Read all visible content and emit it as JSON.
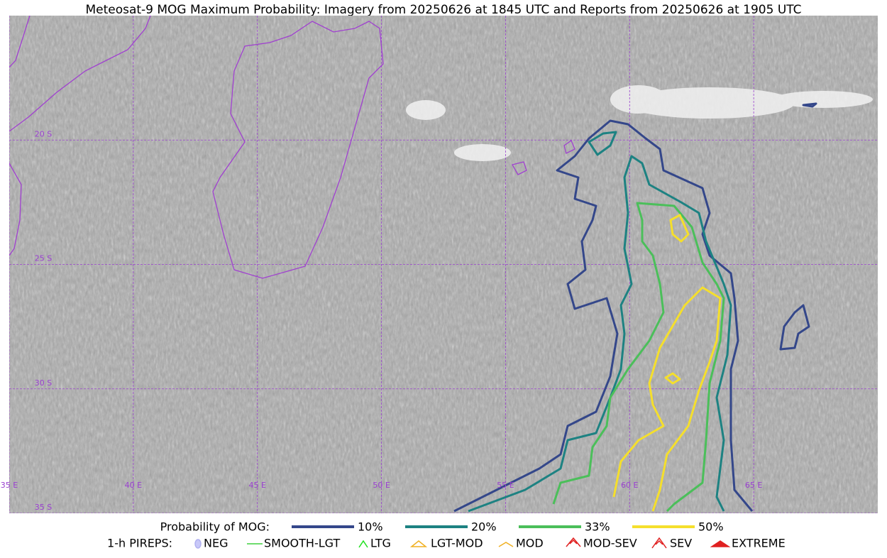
{
  "title": "Meteosat-9 MOG Maximum Probability: Imagery from 20250626 at 1845 UTC and Reports from 20250626 at 1905 UTC",
  "map": {
    "lon_lim": [
      35,
      70
    ],
    "lat_lim": [
      -15,
      -35
    ],
    "lon_lines": [
      {
        "value": 35,
        "label": "35 E"
      },
      {
        "value": 40,
        "label": "40 E"
      },
      {
        "value": 45,
        "label": "45 E"
      },
      {
        "value": 50,
        "label": "50 E"
      },
      {
        "value": 55,
        "label": "55 E"
      },
      {
        "value": 60,
        "label": "60 E"
      },
      {
        "value": 65,
        "label": "65 E"
      }
    ],
    "lat_lines": [
      {
        "value": -20,
        "label": "20 S"
      },
      {
        "value": -25,
        "label": "25 S"
      },
      {
        "value": -30,
        "label": "30 S"
      },
      {
        "value": -35,
        "label": "35 S"
      }
    ]
  },
  "legend": {
    "probability_title": "Probability of MOG:",
    "levels": [
      {
        "label": "10%",
        "color": "#34478a"
      },
      {
        "label": "20%",
        "color": "#1d8282"
      },
      {
        "label": "33%",
        "color": "#4bbf5a"
      },
      {
        "label": "50%",
        "color": "#f5df2c"
      }
    ],
    "pireps_title": "1-h PIREPS:",
    "pireps": [
      "NEG",
      "SMOOTH-LGT",
      "LTG",
      "LGT-MOD",
      "MOD",
      "MOD-SEV",
      "SEV",
      "EXTREME"
    ]
  }
}
